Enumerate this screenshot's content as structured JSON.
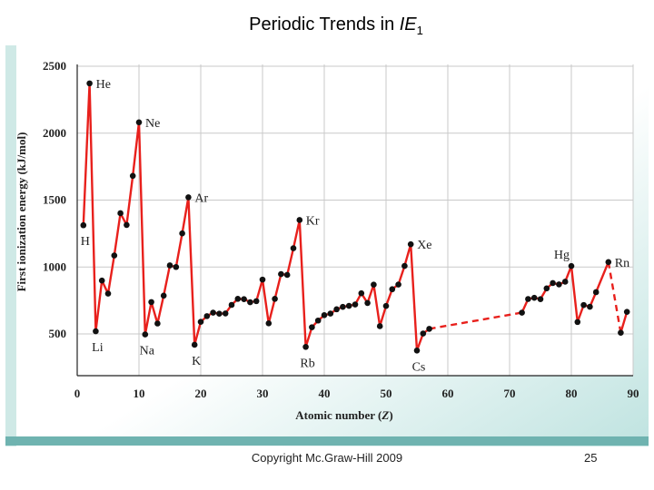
{
  "slide": {
    "title_prefix": "Periodic Trends in ",
    "title_italic": "IE",
    "title_sub": "1",
    "copyright": "Copyright Mc.Graw-Hill 2009",
    "page_number": "25"
  },
  "colors": {
    "line": "#e8201c",
    "marker": "#111111",
    "panel_bg": "#ffffff",
    "panel_gradient": "#bfe3e0",
    "footer": "#6fb3b0"
  },
  "chart_data": {
    "type": "line",
    "title": "",
    "xlabel": "Atomic number (Z)",
    "ylabel": "First ionization energy (kJ/mol)",
    "xlim": [
      0,
      90
    ],
    "ylim": [
      400,
      2500
    ],
    "xticks": [
      0,
      10,
      20,
      30,
      40,
      50,
      60,
      70,
      80,
      90
    ],
    "yticks": [
      500,
      1000,
      1500,
      2000,
      2500
    ],
    "grid": true,
    "series": [
      {
        "values": [
          {
            "x": 1,
            "y": 1312
          },
          {
            "x": 2,
            "y": 2372
          },
          {
            "x": 3,
            "y": 520
          },
          {
            "x": 4,
            "y": 899
          },
          {
            "x": 5,
            "y": 801
          },
          {
            "x": 6,
            "y": 1086
          },
          {
            "x": 7,
            "y": 1402
          },
          {
            "x": 8,
            "y": 1314
          },
          {
            "x": 9,
            "y": 1681
          },
          {
            "x": 10,
            "y": 2081
          },
          {
            "x": 11,
            "y": 496
          },
          {
            "x": 12,
            "y": 738
          },
          {
            "x": 13,
            "y": 578
          },
          {
            "x": 14,
            "y": 786
          },
          {
            "x": 15,
            "y": 1012
          },
          {
            "x": 16,
            "y": 1000
          },
          {
            "x": 17,
            "y": 1251
          },
          {
            "x": 18,
            "y": 1521
          },
          {
            "x": 19,
            "y": 419
          },
          {
            "x": 20,
            "y": 590
          },
          {
            "x": 21,
            "y": 633
          },
          {
            "x": 22,
            "y": 659
          },
          {
            "x": 23,
            "y": 651
          },
          {
            "x": 24,
            "y": 653
          },
          {
            "x": 25,
            "y": 717
          },
          {
            "x": 26,
            "y": 762
          },
          {
            "x": 27,
            "y": 760
          },
          {
            "x": 28,
            "y": 737
          },
          {
            "x": 29,
            "y": 745
          },
          {
            "x": 30,
            "y": 906
          },
          {
            "x": 31,
            "y": 579
          },
          {
            "x": 32,
            "y": 762
          },
          {
            "x": 33,
            "y": 947
          },
          {
            "x": 34,
            "y": 941
          },
          {
            "x": 35,
            "y": 1140
          },
          {
            "x": 36,
            "y": 1351
          },
          {
            "x": 37,
            "y": 403
          },
          {
            "x": 38,
            "y": 550
          },
          {
            "x": 39,
            "y": 600
          },
          {
            "x": 40,
            "y": 640
          },
          {
            "x": 41,
            "y": 652
          },
          {
            "x": 42,
            "y": 684
          },
          {
            "x": 43,
            "y": 702
          },
          {
            "x": 44,
            "y": 710
          },
          {
            "x": 45,
            "y": 720
          },
          {
            "x": 46,
            "y": 804
          },
          {
            "x": 47,
            "y": 731
          },
          {
            "x": 48,
            "y": 868
          },
          {
            "x": 49,
            "y": 558
          },
          {
            "x": 50,
            "y": 709
          },
          {
            "x": 51,
            "y": 834
          },
          {
            "x": 52,
            "y": 869
          },
          {
            "x": 53,
            "y": 1008
          },
          {
            "x": 54,
            "y": 1170
          },
          {
            "x": 55,
            "y": 376
          },
          {
            "x": 56,
            "y": 503
          },
          {
            "x": 57,
            "y": 538
          }
        ]
      },
      {
        "dashed": true,
        "values": [
          {
            "x": 57,
            "y": 538
          },
          {
            "x": 72,
            "y": 659
          }
        ]
      },
      {
        "values": [
          {
            "x": 72,
            "y": 659
          },
          {
            "x": 73,
            "y": 761
          },
          {
            "x": 74,
            "y": 770
          },
          {
            "x": 75,
            "y": 760
          },
          {
            "x": 76,
            "y": 840
          },
          {
            "x": 77,
            "y": 880
          },
          {
            "x": 78,
            "y": 870
          },
          {
            "x": 79,
            "y": 890
          },
          {
            "x": 80,
            "y": 1007
          },
          {
            "x": 81,
            "y": 589
          },
          {
            "x": 82,
            "y": 716
          },
          {
            "x": 83,
            "y": 703
          },
          {
            "x": 84,
            "y": 812
          },
          {
            "x": 86,
            "y": 1037
          }
        ]
      },
      {
        "dashed": true,
        "values": [
          {
            "x": 86,
            "y": 1037
          },
          {
            "x": 88,
            "y": 509
          }
        ]
      },
      {
        "values": [
          {
            "x": 88,
            "y": 509
          },
          {
            "x": 89,
            "y": 665
          }
        ]
      }
    ],
    "annotations": [
      {
        "text": "He",
        "x": 2,
        "y": 2372,
        "pos": "right"
      },
      {
        "text": "Ne",
        "x": 10,
        "y": 2081,
        "pos": "right"
      },
      {
        "text": "Ar",
        "x": 18,
        "y": 1521,
        "pos": "right"
      },
      {
        "text": "Kr",
        "x": 36,
        "y": 1351,
        "pos": "right"
      },
      {
        "text": "Xe",
        "x": 54,
        "y": 1170,
        "pos": "right"
      },
      {
        "text": "Hg",
        "x": 80,
        "y": 1007,
        "pos": "upleft"
      },
      {
        "text": "Rn",
        "x": 86,
        "y": 1037,
        "pos": "right"
      },
      {
        "text": "H",
        "x": 1,
        "y": 1312,
        "pos": "below"
      },
      {
        "text": "Li",
        "x": 3,
        "y": 520,
        "pos": "below"
      },
      {
        "text": "Na",
        "x": 11,
        "y": 496,
        "pos": "below"
      },
      {
        "text": "K",
        "x": 19,
        "y": 419,
        "pos": "below"
      },
      {
        "text": "Rb",
        "x": 37,
        "y": 403,
        "pos": "below"
      },
      {
        "text": "Cs",
        "x": 55,
        "y": 376,
        "pos": "below"
      }
    ]
  }
}
